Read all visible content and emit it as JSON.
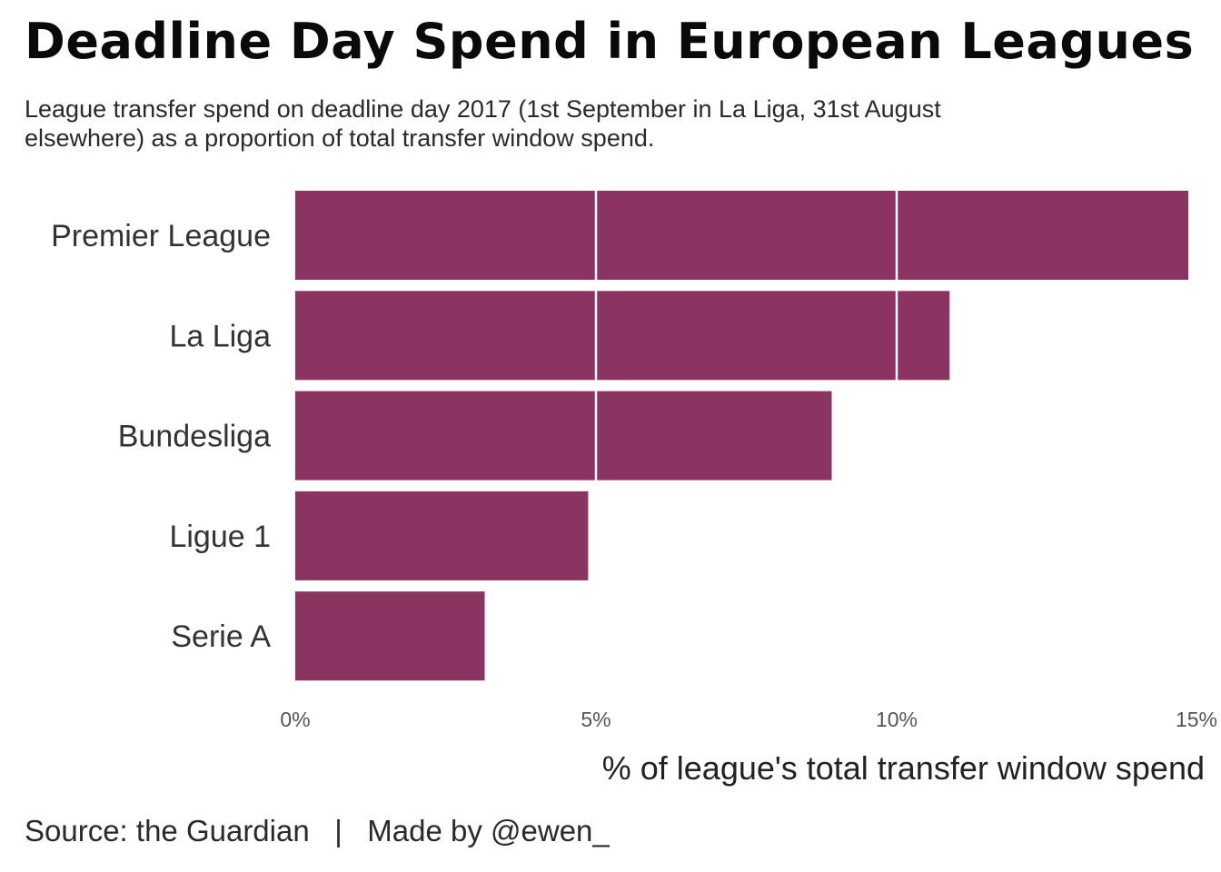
{
  "title": "Deadline Day Spend in European Leagues",
  "subtitle": "League transfer spend on deadline day 2017 (1st September in La Liga, 31st August elsewhere) as a proportion of total transfer window spend.",
  "caption": "Source: the Guardian   |   Made by @ewen_",
  "colors": {
    "bar": "#8b3461",
    "gridline": "#ffffff",
    "text": "#333333"
  },
  "chart_data": {
    "type": "bar",
    "orientation": "horizontal",
    "categories": [
      "Premier League",
      "La Liga",
      "Bundesliga",
      "Ligue 1",
      "Serie A"
    ],
    "values": [
      14.85,
      10.88,
      8.92,
      4.87,
      3.15
    ],
    "xlabel": "% of league's total transfer window spend",
    "ylabel": "",
    "xlim": [
      0,
      15
    ],
    "xticks": [
      0,
      5,
      10,
      15
    ],
    "xtick_labels": [
      "0%",
      "5%",
      "10%",
      "15%"
    ],
    "grid": "vertical lines drawn over bars in white"
  }
}
